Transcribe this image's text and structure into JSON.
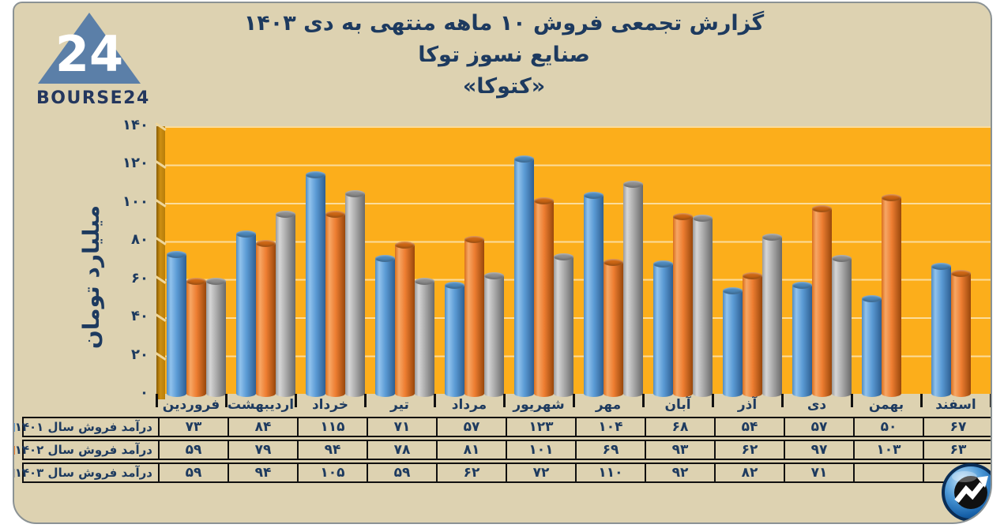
{
  "brand": {
    "logo_number": "24",
    "logo_text": "BOURSE24"
  },
  "title": {
    "line1": "گزارش تجمعی فروش ۱۰ ماهه منتهی به دی ۱۴۰۳",
    "line2": "صنایع نسوز توکا",
    "line3": "«کتوکا»"
  },
  "chart_data": {
    "type": "bar",
    "style": "3d-cylinder-columns",
    "title": "گزارش تجمعی فروش ۱۰ ماهه منتهی به دی ۱۴۰۳ - صنایع نسوز توکا «کتوکا»",
    "xlabel": "",
    "ylabel": "میلیارد تومان",
    "ylim": [
      0,
      140
    ],
    "ytick_step": 20,
    "yticks_fa": [
      "۰",
      "۲۰",
      "۴۰",
      "۶۰",
      "۸۰",
      "۱۰۰",
      "۱۲۰",
      "۱۴۰"
    ],
    "grid": true,
    "legend_position": "table-left-column",
    "categories": [
      "فروردین",
      "اردیبهشت",
      "خرداد",
      "تیر",
      "مرداد",
      "شهریور",
      "مهر",
      "آبان",
      "آذر",
      "دی",
      "بهمن",
      "اسفند"
    ],
    "series": [
      {
        "name": "درآمد فروش سال ۱۴۰۱",
        "color": "#5b9bd5",
        "values": [
          73,
          84,
          115,
          71,
          57,
          123,
          104,
          68,
          54,
          57,
          50,
          67
        ],
        "values_fa": [
          "۷۳",
          "۸۴",
          "۱۱۵",
          "۷۱",
          "۵۷",
          "۱۲۳",
          "۱۰۴",
          "۶۸",
          "۵۴",
          "۵۷",
          "۵۰",
          "۶۷"
        ]
      },
      {
        "name": "درآمد فروش سال ۱۴۰۲",
        "color": "#ed7d31",
        "values": [
          59,
          79,
          94,
          78,
          81,
          101,
          69,
          93,
          62,
          97,
          103,
          63
        ],
        "values_fa": [
          "۵۹",
          "۷۹",
          "۹۴",
          "۷۸",
          "۸۱",
          "۱۰۱",
          "۶۹",
          "۹۳",
          "۶۲",
          "۹۷",
          "۱۰۳",
          "۶۳"
        ]
      },
      {
        "name": "درآمد فروش سال ۱۴۰۳",
        "color": "#ababab",
        "values": [
          59,
          94,
          105,
          59,
          62,
          72,
          110,
          92,
          82,
          71,
          null,
          null
        ],
        "values_fa": [
          "۵۹",
          "۹۴",
          "۱۰۵",
          "۵۹",
          "۶۲",
          "۷۲",
          "۱۱۰",
          "۹۲",
          "۸۲",
          "۷۱",
          "",
          ""
        ]
      }
    ],
    "colors": {
      "plot_bg": "#fcae1b",
      "gridline": "#fbdc9b",
      "wall": "#cd9013",
      "card_bg": "#ddd2b1",
      "text": "#1d3a5f"
    }
  }
}
